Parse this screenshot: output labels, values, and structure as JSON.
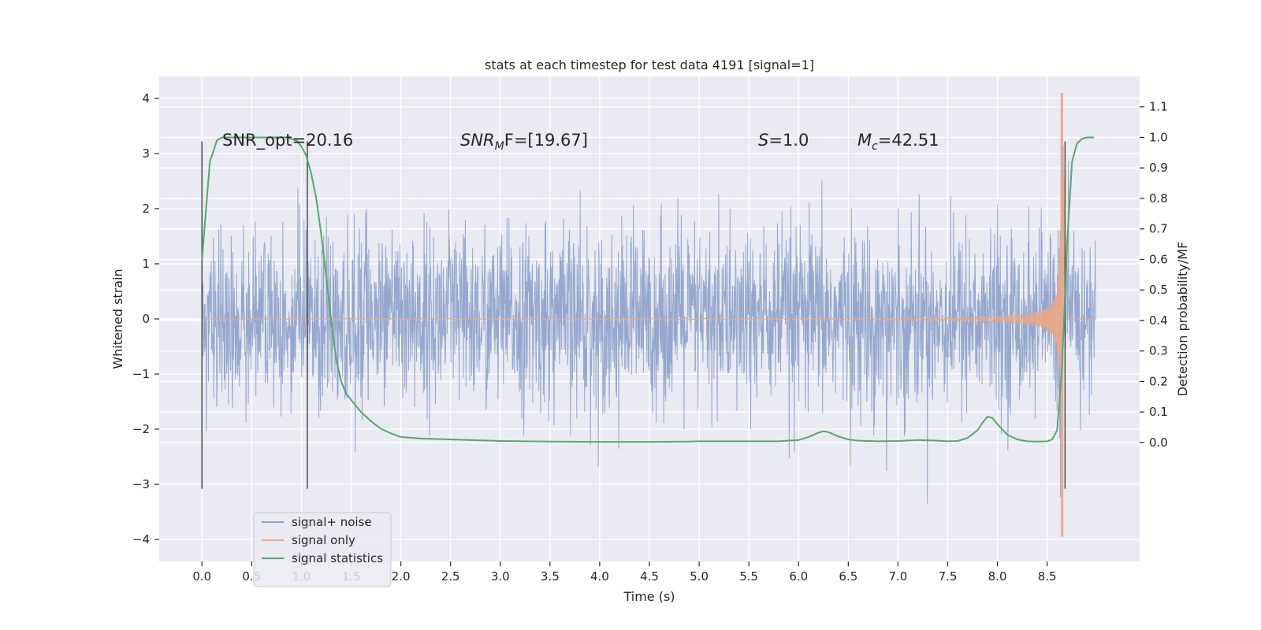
{
  "chart_data": {
    "type": "line",
    "title": "stats at each timestep for test data 4191 [signal=1]",
    "xlabel": "Time (s)",
    "ylabel": "Whitened strain",
    "ylabel_right": "Detection probability/MF",
    "xlim": [
      -0.43,
      9.43
    ],
    "ylim": [
      -4.4,
      4.4
    ],
    "ylim_right": [
      -0.39,
      1.2
    ],
    "x_ticks": [
      "0.0",
      "0.5",
      "1.0",
      "1.5",
      "2.0",
      "2.5",
      "3.0",
      "3.5",
      "4.0",
      "4.5",
      "5.0",
      "5.5",
      "6.0",
      "6.5",
      "7.0",
      "7.5",
      "8.0",
      "8.5"
    ],
    "x_tick_values": [
      0,
      0.5,
      1,
      1.5,
      2,
      2.5,
      3,
      3.5,
      4,
      4.5,
      5,
      5.5,
      6,
      6.5,
      7,
      7.5,
      8,
      8.5
    ],
    "y_ticks": [
      "4",
      "3",
      "2",
      "1",
      "0",
      "−1",
      "−2",
      "−3",
      "−4"
    ],
    "y_tick_values": [
      4,
      3,
      2,
      1,
      0,
      -1,
      -2,
      -3,
      -4
    ],
    "y_right_ticks": [
      "1.1",
      "1.0",
      "0.9",
      "0.8",
      "0.7",
      "0.6",
      "0.5",
      "0.4",
      "0.3",
      "0.2",
      "0.1",
      "0.0"
    ],
    "y_right_tick_values": [
      1.1,
      1.0,
      0.9,
      0.8,
      0.7,
      0.6,
      0.5,
      0.4,
      0.3,
      0.2,
      0.1,
      0.0
    ],
    "annotations": [
      {
        "name": "snr-opt",
        "text": "SNR_opt=20.16",
        "x": 0.2,
        "y": 3.25
      },
      {
        "name": "snr-mf",
        "text": "SNR",
        "sub": "M",
        "rest": "F=[19.67]",
        "x": 2.6,
        "y": 3.25
      },
      {
        "name": "s-value",
        "text": "S",
        "rest": "=1.0",
        "x": 5.6,
        "y": 3.25
      },
      {
        "name": "chirp-mass",
        "text": "M",
        "sub": "c",
        "rest": "=42.51",
        "x": 6.6,
        "y": 3.25
      }
    ],
    "vertical_lines": [
      0.0,
      1.06,
      8.68
    ],
    "vertical_line_range": [
      -3.08,
      3.22
    ],
    "legend": {
      "position": "lower-left",
      "entries": [
        {
          "label": "signal+ noise",
          "color": "#8da0cb"
        },
        {
          "label": "signal only",
          "color": "#e8a88a"
        },
        {
          "label": "signal statistics",
          "color": "#55a868"
        }
      ]
    },
    "series": [
      {
        "name": "signal+ noise",
        "color": "#8da0cb",
        "axis": "left",
        "x_range": [
          0.0,
          8.99
        ],
        "typical_amplitude": 1.3,
        "peak_max": 3.15,
        "peak_min": -3.35
      },
      {
        "name": "signal only",
        "color": "#e8a88a",
        "axis": "left",
        "x_range": [
          0.0,
          8.99
        ],
        "merger_time": 8.65,
        "peak_max": 4.1,
        "peak_min": -3.95
      },
      {
        "name": "signal statistics",
        "color": "#55a868",
        "axis": "right",
        "x": [
          0.0,
          0.08,
          0.15,
          0.2,
          0.3,
          0.5,
          0.7,
          0.85,
          0.95,
          1.0,
          1.05,
          1.1,
          1.15,
          1.2,
          1.25,
          1.3,
          1.35,
          1.4,
          1.45,
          1.5,
          1.6,
          1.7,
          1.8,
          1.9,
          2.0,
          2.2,
          2.5,
          3.0,
          3.5,
          4.0,
          4.5,
          4.9,
          5.0,
          5.2,
          5.5,
          5.8,
          6.0,
          6.1,
          6.2,
          6.25,
          6.3,
          6.4,
          6.5,
          6.6,
          6.8,
          7.0,
          7.2,
          7.4,
          7.5,
          7.6,
          7.7,
          7.8,
          7.85,
          7.9,
          7.95,
          8.0,
          8.1,
          8.2,
          8.3,
          8.4,
          8.5,
          8.55,
          8.6,
          8.65,
          8.7,
          8.75,
          8.8,
          8.85,
          8.9,
          8.97
        ],
        "values": [
          0.6,
          0.92,
          0.99,
          1.0,
          1.0,
          1.0,
          1.0,
          1.0,
          0.99,
          0.97,
          0.94,
          0.88,
          0.8,
          0.68,
          0.54,
          0.4,
          0.27,
          0.2,
          0.16,
          0.14,
          0.1,
          0.07,
          0.045,
          0.03,
          0.018,
          0.013,
          0.01,
          0.005,
          0.003,
          0.002,
          0.002,
          0.003,
          0.004,
          0.004,
          0.004,
          0.004,
          0.008,
          0.018,
          0.032,
          0.037,
          0.034,
          0.02,
          0.01,
          0.006,
          0.004,
          0.005,
          0.008,
          0.006,
          0.004,
          0.005,
          0.015,
          0.04,
          0.065,
          0.085,
          0.08,
          0.06,
          0.025,
          0.01,
          0.004,
          0.003,
          0.004,
          0.01,
          0.04,
          0.25,
          0.65,
          0.92,
          0.98,
          0.995,
          1.0,
          1.0
        ]
      }
    ]
  }
}
